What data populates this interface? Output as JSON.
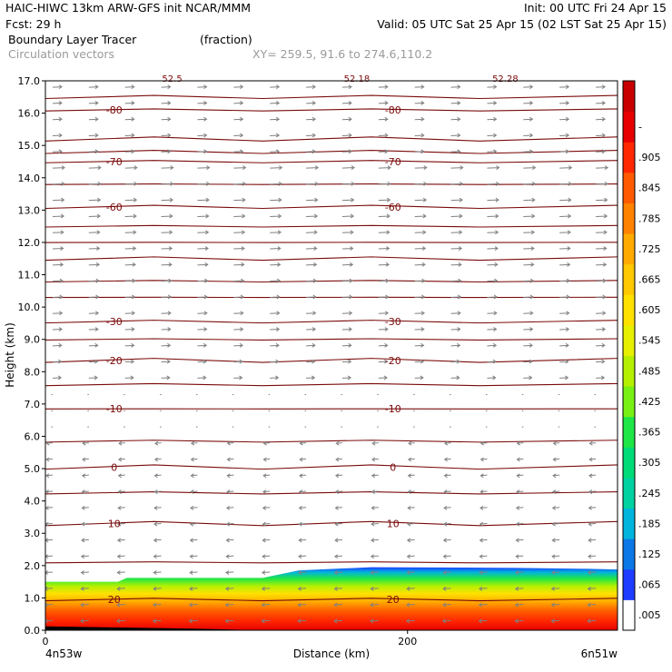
{
  "header": {
    "line1_left": "HAIC-HIWC 13km ARW-GFS init   NCAR/MMM",
    "line1_right": "Init: 00 UTC Fri 24 Apr 15",
    "line2_left": "Fcst:   29 h",
    "line2_right": "Valid: 05 UTC Sat 25 Apr 15 (02 LST Sat 25 Apr 15)",
    "line3_field": "Boundary Layer Tracer",
    "line3_units": "(fraction)",
    "line4_field": "Circulation vectors",
    "line4_xy": "XY= 259.5, 91.6 to 274.6,110.2"
  },
  "chart_data": {
    "type": "heatmap",
    "title": "Boundary Layer Tracer",
    "units": "(fraction)",
    "xlabel": "Distance (km)",
    "ylabel": "Height (km)",
    "xlim": [
      0,
      316
    ],
    "ylim": [
      0,
      17
    ],
    "x_tick_labels": [
      "0",
      "200"
    ],
    "x_end_labels": {
      "left": "4n53w",
      "right": "6n51w"
    },
    "y_ticks": [
      0.0,
      1.0,
      2.0,
      3.0,
      4.0,
      5.0,
      6.0,
      7.0,
      8.0,
      9.0,
      10.0,
      11.0,
      12.0,
      13.0,
      14.0,
      15.0,
      16.0,
      17.0
    ],
    "y_tick_labels": [
      "0.0",
      "1.0",
      "2.0",
      "3.0",
      "4.0",
      "5.0",
      "6.0",
      "7.0",
      "8.0",
      "9.0",
      "10.0",
      "11.0",
      "12.0",
      "13.0",
      "14.0",
      "15.0",
      "16.0",
      "17.0"
    ],
    "colorbar": {
      "labels": [
        ".005",
        ".065",
        ".125",
        ".185",
        ".245",
        ".305",
        ".365",
        ".425",
        ".485",
        ".545",
        ".605",
        ".665",
        ".725",
        ".785",
        ".845",
        ".905",
        "-"
      ],
      "colors": [
        "#ffffff",
        "#1e3cff",
        "#0a78e6",
        "#00b4dc",
        "#00d2a0",
        "#00dc78",
        "#1ee646",
        "#78f014",
        "#b4f000",
        "#e6f000",
        "#ffe100",
        "#ffc800",
        "#ffaa00",
        "#ff8200",
        "#ff5a00",
        "#ff2800",
        "#e60000",
        "#c80000"
      ]
    },
    "tracer_top_km": [
      {
        "x": 0,
        "z": 1.5
      },
      {
        "x": 40,
        "z": 1.5
      },
      {
        "x": 45,
        "z": 1.62
      },
      {
        "x": 120,
        "z": 1.62
      },
      {
        "x": 140,
        "z": 1.85
      },
      {
        "x": 180,
        "z": 1.95
      },
      {
        "x": 260,
        "z": 1.93
      },
      {
        "x": 300,
        "z": 1.9
      },
      {
        "x": 316,
        "z": 1.88
      }
    ],
    "temperature_contours": [
      {
        "label": "-80",
        "z": 16.1
      },
      {
        "label": "-70",
        "z": 14.5
      },
      {
        "label": "-60",
        "z": 13.1
      },
      {
        "label": "-30",
        "z": 9.55
      },
      {
        "label": "-20",
        "z": 8.35
      },
      {
        "label": "-10",
        "z": 6.85
      },
      {
        "label": "0",
        "z": 5.05
      },
      {
        "label": "10",
        "z": 3.3
      },
      {
        "label": "20",
        "z": 0.95
      }
    ],
    "extra_contour_levels_km": [
      16.5,
      15.2,
      14.8,
      13.8,
      12.5,
      12.0,
      11.5,
      10.8,
      10.3,
      9.0,
      7.6,
      5.85,
      4.25,
      2.1
    ],
    "top_labels": [
      "52.5",
      "52.18",
      "52.28"
    ],
    "circulation": {
      "upper_direction": "eastward",
      "lower_direction": "westward",
      "reversal_height_km": 7.5,
      "vector_color": "#808080"
    }
  }
}
